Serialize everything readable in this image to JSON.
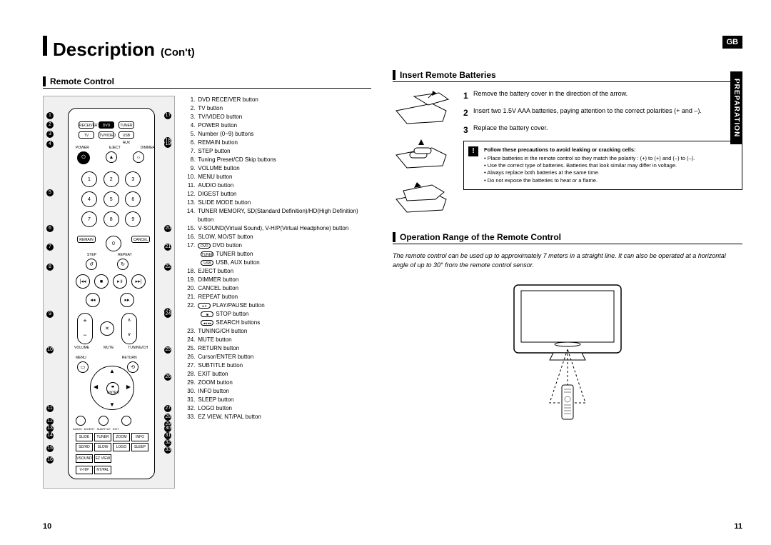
{
  "page": {
    "badge": "GB",
    "tab": "PREPARATION",
    "title_main": "Description",
    "title_sub": "(Con't)",
    "page_left": "10",
    "page_right": "11"
  },
  "colors": {
    "bg": "#ffffff",
    "grey_box": "#f0f0f0",
    "line": "#000000",
    "text": "#000000"
  },
  "left": {
    "section": "Remote Control",
    "legend": [
      {
        "n": "1.",
        "t": "DVD RECEIVER button"
      },
      {
        "n": "2.",
        "t": "TV button"
      },
      {
        "n": "3.",
        "t": "TV/VIDEO button"
      },
      {
        "n": "4.",
        "t": "POWER button"
      },
      {
        "n": "5.",
        "t": "Number (0~9) buttons"
      },
      {
        "n": "6.",
        "t": "REMAIN button"
      },
      {
        "n": "7.",
        "t": "STEP button"
      },
      {
        "n": "8.",
        "t": "Tuning Preset/CD Skip buttons"
      },
      {
        "n": "9.",
        "t": "VOLUME button"
      },
      {
        "n": "10.",
        "t": "MENU button"
      },
      {
        "n": "11.",
        "t": "AUDIO button"
      },
      {
        "n": "12.",
        "t": "DIGEST button"
      },
      {
        "n": "13.",
        "t": "SLIDE MODE button"
      },
      {
        "n": "14.",
        "t": "TUNER MEMORY, SD(Standard Definition)/HD(High Definition) button"
      },
      {
        "n": "15.",
        "t": "V-SOUND(Virtual Sound), V-H/P(Virtual Headphone) button"
      },
      {
        "n": "16.",
        "t": "SLOW, MO/ST button"
      },
      {
        "n": "17.",
        "t": "DVD button",
        "subs": [
          {
            "icon": "TUNER",
            "t": "TUNER button"
          },
          {
            "icon": "USB",
            "t": "USB, AUX button"
          }
        ],
        "lead_icon": "DVD"
      },
      {
        "n": "18.",
        "t": "EJECT button"
      },
      {
        "n": "19.",
        "t": "DIMMER button"
      },
      {
        "n": "20.",
        "t": "CANCEL button"
      },
      {
        "n": "21.",
        "t": "REPEAT button"
      },
      {
        "n": "22.",
        "t": "PLAY/PAUSE button",
        "lead_icon": "▸॥",
        "subs": [
          {
            "icon": "■",
            "t": "STOP button"
          },
          {
            "icon": "◂◂ ▸▸",
            "t": "SEARCH buttons"
          }
        ]
      },
      {
        "n": "23.",
        "t": "TUNING/CH button"
      },
      {
        "n": "24.",
        "t": "MUTE button"
      },
      {
        "n": "25.",
        "t": "RETURN button"
      },
      {
        "n": "26.",
        "t": "Cursor/ENTER button"
      },
      {
        "n": "27.",
        "t": "SUBTITLE button"
      },
      {
        "n": "28.",
        "t": "EXIT button"
      },
      {
        "n": "29.",
        "t": "ZOOM button"
      },
      {
        "n": "30.",
        "t": "INFO button"
      },
      {
        "n": "31.",
        "t": "SLEEP button"
      },
      {
        "n": "32.",
        "t": "LOGO button"
      },
      {
        "n": "33.",
        "t": "EZ VIEW, NT/PAL button"
      }
    ],
    "callouts_left": [
      "1",
      "2",
      "3",
      "4",
      "5",
      "6",
      "7",
      "8",
      "9",
      "10",
      "11",
      "12",
      "13",
      "14",
      "15",
      "16"
    ],
    "callouts_right": [
      "17",
      "18",
      "19",
      "20",
      "21",
      "22",
      "23",
      "24",
      "25",
      "26",
      "27",
      "28",
      "29",
      "30",
      "31",
      "32",
      "33"
    ]
  },
  "right": {
    "s1_title": "Insert Remote Batteries",
    "steps": [
      {
        "n": "1",
        "t": "Remove the battery cover in the direction of the arrow."
      },
      {
        "n": "2",
        "t": "Insert two 1.5V AAA batteries, paying attention to the correct polarities (+ and –)."
      },
      {
        "n": "3",
        "t": "Replace the battery cover."
      }
    ],
    "warn_title": "Follow these precautions to avoid leaking or cracking cells:",
    "warn_items": [
      "Place batteries in the remote control so they match the polarity : (+) to (+) and (–) to (–).",
      "Use the correct type of batteries. Batteries that look similar may differ in voltage.",
      "Always replace both batteries at the same time.",
      "Do not expose the batteries to heat or a flame."
    ],
    "s2_title": "Operation Range of the Remote Control",
    "op_note": "The remote control can be used up to approximately 7 meters in a straight line. It can also be operated at a horizontal angle of up to 30° from the remote control sensor."
  }
}
